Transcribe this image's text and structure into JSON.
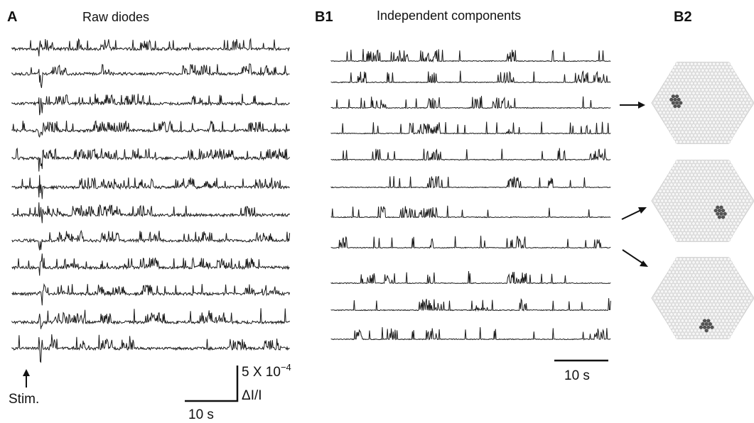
{
  "panels": {
    "a": {
      "letter": "A",
      "title": "Raw diodes"
    },
    "b1": {
      "letter": "B1",
      "title": "Independent components"
    },
    "b2": {
      "letter": "B2"
    }
  },
  "labels": {
    "stim": "Stim.",
    "scale_a_amp_base": "5 X 10",
    "scale_a_amp_exp": "−4",
    "scale_a_amp_unit": "ΔI/I",
    "scale_a_time": "10 s",
    "scale_b_time": "10 s"
  },
  "raw_diodes": {
    "trace_count": 12
  },
  "independent_components": {
    "trace_count": 11
  },
  "maps": [
    {
      "arrow_from_component": 3
    },
    {
      "arrow_from_component": 7
    },
    {
      "arrow_from_component": 8
    }
  ],
  "colors": {
    "trace": "#1a1a1a",
    "map_background": "#ececec",
    "active_cell": "#555555"
  }
}
